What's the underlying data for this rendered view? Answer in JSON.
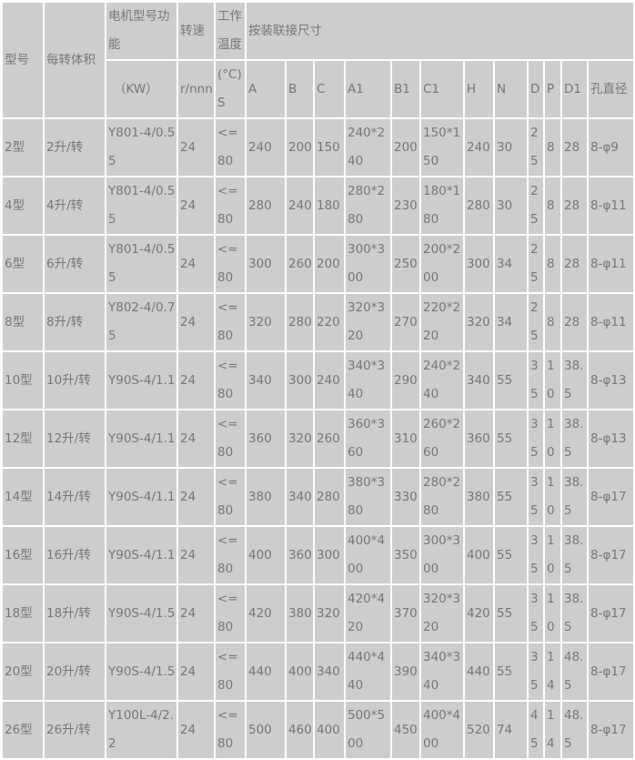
{
  "header": {
    "model": "型号",
    "volume": "每转体积",
    "motor": "电机型号功能",
    "motor_unit": "（KW）",
    "speed": "转速",
    "speed_unit": "r/nnn",
    "temp": "工作温度",
    "temp_unit": "(°C)S",
    "dims": "按装联接尺寸",
    "dim_cols": [
      "A",
      "B",
      "C",
      "A1",
      "B1",
      "C1",
      "H",
      "N",
      "D",
      "P",
      "D1",
      "孔直径"
    ]
  },
  "rows": [
    [
      "2型",
      "2升/转",
      "Y801-4/0.55",
      "24",
      "<=80",
      "240",
      "200",
      "150",
      "240*240",
      "200",
      "150*150",
      "240",
      "30",
      "25",
      "8",
      "28",
      "8-φ9"
    ],
    [
      "4型",
      "4升/转",
      "Y801-4/0.55",
      "24",
      "<=80",
      "280",
      "240",
      "180",
      "280*280",
      "230",
      "180*180",
      "280",
      "30",
      "25",
      "8",
      "28",
      "8-φ11"
    ],
    [
      "6型",
      "6升/转",
      "Y801-4/0.55",
      "24",
      "<=80",
      "300",
      "260",
      "200",
      "300*300",
      "250",
      "200*200",
      "300",
      "34",
      "25",
      "8",
      "28",
      "8-φ11"
    ],
    [
      "8型",
      "8升/转",
      "Y802-4/0.75",
      "24",
      "<=80",
      "320",
      "280",
      "220",
      "320*320",
      "270",
      "220*220",
      "320",
      "34",
      "25",
      "8",
      "28",
      "8-φ11"
    ],
    [
      "10型",
      "10升/转",
      "Y90S-4/1.1",
      "24",
      "<=80",
      "340",
      "300",
      "240",
      "340*340",
      "290",
      "240*240",
      "340",
      "55",
      "35",
      "10",
      "38.5",
      "8-φ13"
    ],
    [
      "12型",
      "12升/转",
      "Y90S-4/1.1",
      "24",
      "<=80",
      "360",
      "320",
      "260",
      "360*360",
      "310",
      "260*260",
      "360",
      "55",
      "35",
      "10",
      "38.5",
      "8-φ13"
    ],
    [
      "14型",
      "14升/转",
      "Y90S-4/1.1",
      "24",
      "<=80",
      "380",
      "340",
      "280",
      "380*380",
      "330",
      "280*280",
      "380",
      "55",
      "35",
      "10",
      "38.5",
      "8-φ17"
    ],
    [
      "16型",
      "16升/转",
      "Y90S-4/1.1",
      "24",
      "<=80",
      "400",
      "360",
      "300",
      "400*400",
      "350",
      "300*300",
      "400",
      "55",
      "35",
      "10",
      "38.5",
      "8-φ17"
    ],
    [
      "18型",
      "18升/转",
      "Y90S-4/1.5",
      "24",
      "<=80",
      "420",
      "380",
      "320",
      "420*420",
      "370",
      "320*320",
      "420",
      "55",
      "35",
      "10",
      "38.5",
      "8-φ17"
    ],
    [
      "20型",
      "20升/转",
      "Y90S-4/1.5",
      "24",
      "<=80",
      "440",
      "400",
      "340",
      "440*440",
      "390",
      "340*340",
      "440",
      "55",
      "35",
      "14",
      "48.5",
      "8-φ17"
    ],
    [
      "26型",
      "26升/转",
      "Y100L-4/2.2",
      "24",
      "<=80",
      "500",
      "460",
      "400",
      "500*500",
      "450",
      "400*400",
      "520",
      "74",
      "45",
      "14",
      "48.5",
      "8-φ17"
    ]
  ]
}
